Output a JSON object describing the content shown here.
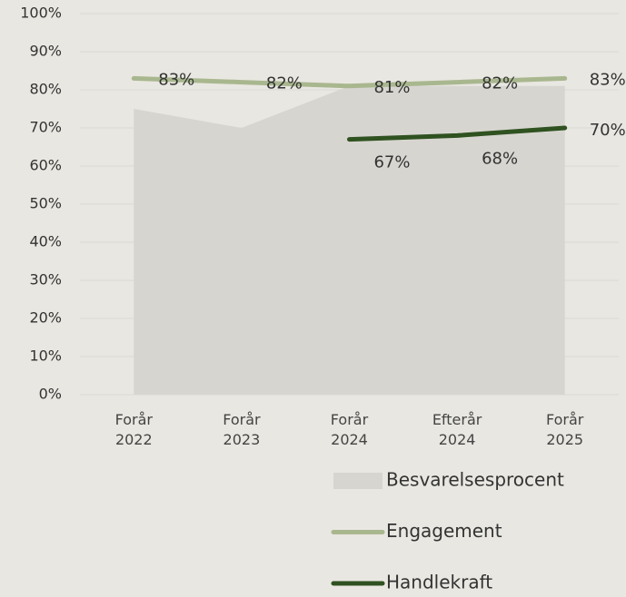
{
  "chart_data": {
    "type": "line",
    "categories": [
      "Forår\n2022",
      "Forår\n2023",
      "Forår\n2024",
      "Efterår\n2024",
      "Forår\n2025"
    ],
    "series": [
      {
        "name": "Besvarelsesprocent",
        "kind": "area",
        "color": "#d7d5d0",
        "values": [
          75,
          70,
          81,
          81,
          81
        ]
      },
      {
        "name": "Engagement",
        "color": "#a9b78f",
        "values": [
          83,
          82,
          81,
          82,
          83
        ],
        "value_labels": [
          "83%",
          "82%",
          "81%",
          "82%",
          "83%"
        ]
      },
      {
        "name": "Handlekraft",
        "color": "#2f5220",
        "values": [
          null,
          null,
          67,
          68,
          70
        ],
        "value_labels": [
          null,
          null,
          "67%",
          "68%",
          "70%"
        ]
      }
    ],
    "ylim": [
      0,
      100
    ],
    "yticks": [
      {
        "value": 0,
        "label": "0%"
      },
      {
        "value": 10,
        "label": "10%"
      },
      {
        "value": 20,
        "label": "20%"
      },
      {
        "value": 30,
        "label": "30%"
      },
      {
        "value": 40,
        "label": "40%"
      },
      {
        "value": 50,
        "label": "50%"
      },
      {
        "value": 60,
        "label": "60%"
      },
      {
        "value": 70,
        "label": "70%"
      },
      {
        "value": 80,
        "label": "80%"
      },
      {
        "value": 90,
        "label": "90%"
      },
      {
        "value": 100,
        "label": "100%"
      }
    ],
    "grid": true,
    "legend": "bottom"
  }
}
